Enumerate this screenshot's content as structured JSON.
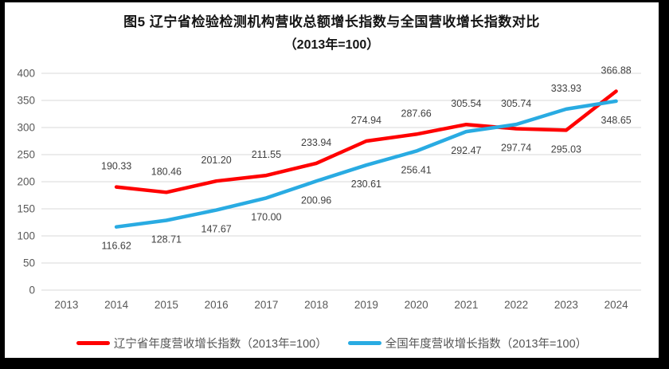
{
  "title": {
    "line1": "图5  辽宁省检验检测机构营收总额增长指数与全国营收增长指数对比",
    "line2": "（2013年=100）"
  },
  "legend": {
    "items": [
      {
        "label": "辽宁省年度营收增长指数（2013年=100）",
        "color": "#FF0000"
      },
      {
        "label": "全国年度营收增长指数（2013年=100）",
        "color": "#29ABE2"
      }
    ]
  },
  "colors": {
    "red_series": "#FF0000",
    "blue_series": "#29ABE2",
    "gridline": "#D9D9D9",
    "axis_text": "#595959",
    "data_label": "#404040",
    "frame": "#000000",
    "background": "#FFFFFF"
  },
  "chart_data": {
    "type": "line",
    "title": "图5  辽宁省检验检测机构营收总额增长指数与全国营收增长指数对比（2013年=100）",
    "categories": [
      "2013",
      "2014",
      "2015",
      "2016",
      "2017",
      "2018",
      "2019",
      "2020",
      "2021",
      "2022",
      "2023",
      "2024"
    ],
    "series": [
      {
        "name": "辽宁省年度营收增长指数（2013年=100）",
        "color": "#FF0000",
        "values": [
          null,
          190.33,
          180.46,
          201.2,
          211.55,
          233.94,
          274.94,
          287.66,
          305.54,
          297.74,
          295.03,
          366.88
        ],
        "labels": [
          null,
          "190.33",
          "180.46",
          "201.20",
          "211.55",
          "233.94",
          "274.94",
          "287.66",
          "305.54",
          "297.74",
          "295.03",
          "366.88"
        ]
      },
      {
        "name": "全国年度营收增长指数（2013年=100）",
        "color": "#29ABE2",
        "values": [
          null,
          116.62,
          128.71,
          147.67,
          170.0,
          200.96,
          230.61,
          256.41,
          292.47,
          305.74,
          333.93,
          348.65
        ],
        "labels": [
          null,
          "116.62",
          "128.71",
          "147.67",
          "170.00",
          "200.96",
          "230.61",
          "256.41",
          "292.47",
          "305.74",
          "333.93",
          "348.65"
        ]
      }
    ],
    "yticks": [
      0,
      50,
      100,
      150,
      200,
      250,
      300,
      350,
      400
    ],
    "ylim": [
      0,
      400
    ],
    "xlabel": "",
    "ylabel": "",
    "grid": true,
    "legend_position": "bottom"
  }
}
